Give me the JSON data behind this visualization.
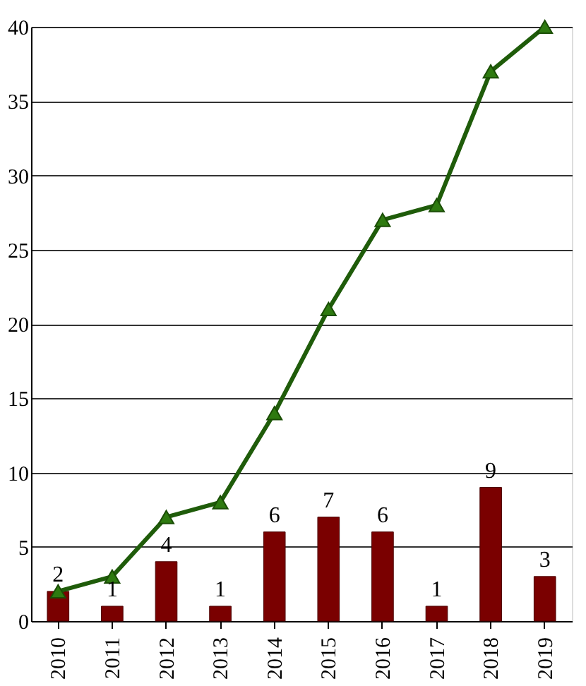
{
  "chart_data": {
    "type": "bar",
    "categories": [
      "2010",
      "2011",
      "2012",
      "2013",
      "2014",
      "2015",
      "2016",
      "2017",
      "2018",
      "2019"
    ],
    "series": [
      {
        "color": "#7a0000",
        "values": [
          2,
          1,
          4,
          1,
          6,
          7,
          6,
          1,
          9,
          3
        ],
        "data_labels": true
      },
      {
        "type": "line",
        "color": "#1f5c0a",
        "values": [
          2,
          3,
          7,
          8,
          14,
          21,
          27,
          28,
          37,
          40
        ],
        "marker": "triangle",
        "line_style": "solid"
      }
    ],
    "ylim": [
      0,
      40
    ],
    "yticks": [
      0,
      5,
      10,
      15,
      20,
      25,
      30,
      35,
      40
    ],
    "grid": "y"
  }
}
